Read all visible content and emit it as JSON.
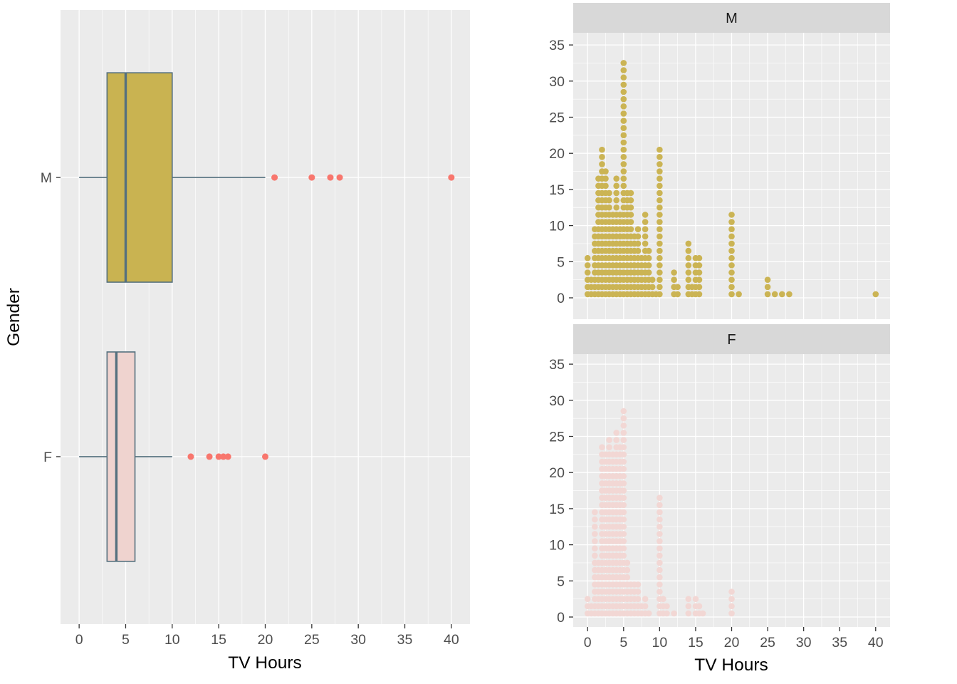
{
  "theme": {
    "panel_bg": "#EBEBEB",
    "grid": "#FFFFFF",
    "strip_bg": "#D8D8D8",
    "tick_text": "#4D4D4D",
    "axis_title": "#000000",
    "tick_mark": "#333333"
  },
  "chart_data": [
    {
      "type": "boxplot",
      "orientation": "horizontal",
      "xlabel": "TV Hours",
      "ylabel": "Gender",
      "xlim": [
        0,
        40
      ],
      "x_ticks": [
        0,
        5,
        10,
        15,
        20,
        25,
        30,
        35,
        40
      ],
      "categories": [
        "M",
        "F"
      ],
      "outlier_color": "#F8766D",
      "stroke": "#55707E",
      "series": [
        {
          "category": "M",
          "fill": "#C9B351",
          "q1": 3,
          "median": 5,
          "q3": 10,
          "whisker_low": 0,
          "whisker_high": 20,
          "outliers": [
            21,
            25,
            27,
            28,
            40
          ]
        },
        {
          "category": "F",
          "fill": "#EFD3CF",
          "q1": 3,
          "median": 4,
          "q3": 6,
          "whisker_low": 0,
          "whisker_high": 10,
          "outliers": [
            12,
            14,
            15,
            15.5,
            16,
            20
          ]
        }
      ]
    },
    {
      "type": "dotplot",
      "xlabel": "TV Hours",
      "xlim": [
        0,
        40
      ],
      "ylim": [
        0,
        35
      ],
      "x_ticks": [
        0,
        5,
        10,
        15,
        20,
        25,
        30,
        35,
        40
      ],
      "y_ticks": [
        0,
        5,
        10,
        15,
        20,
        25,
        30,
        35
      ],
      "facets": [
        {
          "label": "M",
          "color": "#CBB454",
          "stacks": [
            [
              0,
              6
            ],
            [
              0.5,
              3
            ],
            [
              1,
              10
            ],
            [
              1.5,
              17
            ],
            [
              2,
              21
            ],
            [
              2.5,
              18
            ],
            [
              3,
              15
            ],
            [
              3.5,
              12
            ],
            [
              4,
              17
            ],
            [
              4.5,
              12
            ],
            [
              5,
              33
            ],
            [
              5.5,
              15
            ],
            [
              6,
              15
            ],
            [
              6.5,
              9
            ],
            [
              7,
              10
            ],
            [
              7.5,
              6
            ],
            [
              8,
              12
            ],
            [
              8.5,
              7
            ],
            [
              9,
              3
            ],
            [
              9.5,
              1
            ],
            [
              10,
              21
            ],
            [
              12,
              4
            ],
            [
              12.5,
              2
            ],
            [
              14,
              8
            ],
            [
              14.5,
              2
            ],
            [
              15,
              6
            ],
            [
              15.5,
              6
            ],
            [
              20,
              12
            ],
            [
              21,
              1
            ],
            [
              25,
              3
            ],
            [
              26,
              1
            ],
            [
              27,
              1
            ],
            [
              28,
              1
            ],
            [
              40,
              1
            ]
          ]
        },
        {
          "label": "F",
          "color": "#F2D7D4",
          "stacks": [
            [
              0,
              3
            ],
            [
              0.5,
              2
            ],
            [
              1,
              15
            ],
            [
              1.5,
              8
            ],
            [
              2,
              24
            ],
            [
              2.5,
              23
            ],
            [
              3,
              25
            ],
            [
              3.5,
              23
            ],
            [
              4,
              26
            ],
            [
              4.5,
              24
            ],
            [
              5,
              29
            ],
            [
              5.5,
              8
            ],
            [
              6,
              5
            ],
            [
              6.5,
              5
            ],
            [
              7,
              5
            ],
            [
              7.5,
              2
            ],
            [
              8,
              3
            ],
            [
              8.5,
              1
            ],
            [
              10,
              17
            ],
            [
              10.5,
              3
            ],
            [
              11,
              2
            ],
            [
              12,
              1
            ],
            [
              14,
              3
            ],
            [
              15,
              3
            ],
            [
              15.5,
              2
            ],
            [
              16,
              1
            ],
            [
              20,
              4
            ]
          ]
        }
      ]
    }
  ]
}
